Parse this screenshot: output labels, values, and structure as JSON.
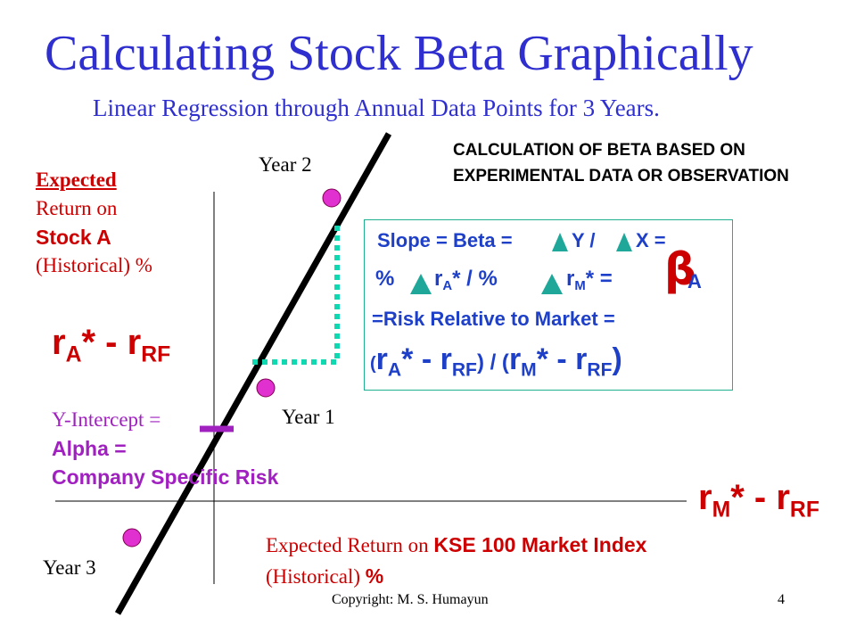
{
  "title": "Calculating Stock Beta Graphically",
  "subtitle": "Linear Regression through Annual Data Points for 3 Years.",
  "calc_heading": "CALCULATION OF BETA BASED ON EXPERIMENTAL DATA OR OBSERVATION",
  "y_axis": {
    "line1": "Expected",
    "line2": "Return on",
    "line3": "Stock A",
    "line4": "(Historical) %",
    "excess_label": {
      "main": "r",
      "sub": "A",
      "rest": "* - r",
      "sub2": "RF"
    }
  },
  "x_axis": {
    "line1_prefix": "Expected Return on ",
    "line1_bold": "KSE 100 Market Index",
    "line2_prefix": "(Historical) ",
    "line2_bold": "%",
    "excess_label": {
      "main": "r",
      "sub": "M",
      "rest": "* - r",
      "sub2": "RF"
    }
  },
  "points": {
    "year1": "Year 1",
    "year2": "Year 2",
    "year3": "Year 3"
  },
  "intercept": {
    "line1": "Y-Intercept =",
    "line2": "Alpha =",
    "line3": "Company Specific Risk"
  },
  "slope_box": {
    "l1a": "Slope = Beta =",
    "l1b": "Y /",
    "l1c": "X =",
    "l2_pct": "%",
    "l2_r": "r",
    "l2_sub": "A",
    "l2_star": "* / %",
    "l2_r2": "r",
    "l2_sub2": "M",
    "l2_star2": "* =",
    "l2_beta": "β",
    "l2_a": "A",
    "l3": "=Risk Relative to Market =",
    "l4_open": "(",
    "l4_r": "r",
    "l4_sub": "A",
    "l4_mid": "* - r",
    "l4_sub2": "RF",
    "l4_close": ") / (",
    "l4_r2": "r",
    "l4_sub3": "M",
    "l4_mid2": "* - r",
    "l4_sub4": "RF",
    "l4_end": ")"
  },
  "footer": "Copyright: M. S. Humayun",
  "page_number": "4",
  "colors": {
    "title_blue": "#2f2fd0",
    "label_red": "#cc0000",
    "intercept_purple": "#a020c0",
    "point_magenta": "#e030d0",
    "dotted_teal": "#10d8b0",
    "box_border": "#20b090",
    "slope_text_blue": "#1e40c8"
  }
}
